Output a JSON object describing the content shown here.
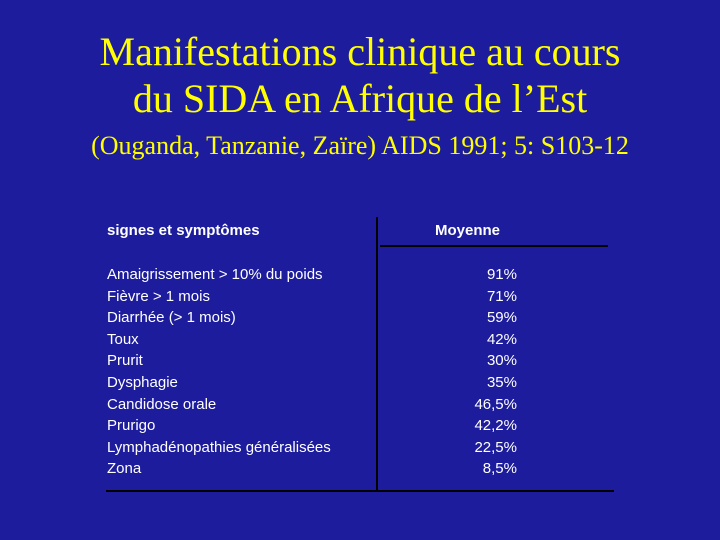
{
  "slide": {
    "title_line1": "Manifestations clinique au cours",
    "title_line2": "du SIDA en Afrique de l’Est",
    "subtitle": "(Ouganda, Tanzanie, Zaïre) AIDS 1991; 5: S103-12"
  },
  "table": {
    "header_left": "signes et symptômes",
    "header_right": "Moyenne",
    "rows": [
      {
        "label": "Amaigrissement > 10% du poids",
        "value": "91%"
      },
      {
        "label": "Fièvre > 1 mois",
        "value": "71%"
      },
      {
        "label": "Diarrhée (> 1 mois)",
        "value": "59%"
      },
      {
        "label": "Toux",
        "value": "42%"
      },
      {
        "label": "Prurit",
        "value": "30%"
      },
      {
        "label": "Dysphagie",
        "value": "35%"
      },
      {
        "label": "Candidose orale",
        "value": "46,5%"
      },
      {
        "label": "Prurigo",
        "value": "42,2%"
      },
      {
        "label": "Lymphadénopathies généralisées",
        "value": "22,5%"
      },
      {
        "label": "Zona",
        "value": "8,5%"
      }
    ]
  },
  "colors": {
    "background": "#1c1c9c",
    "title": "#ffff00",
    "text": "#ffffff",
    "rules": "#000000"
  }
}
